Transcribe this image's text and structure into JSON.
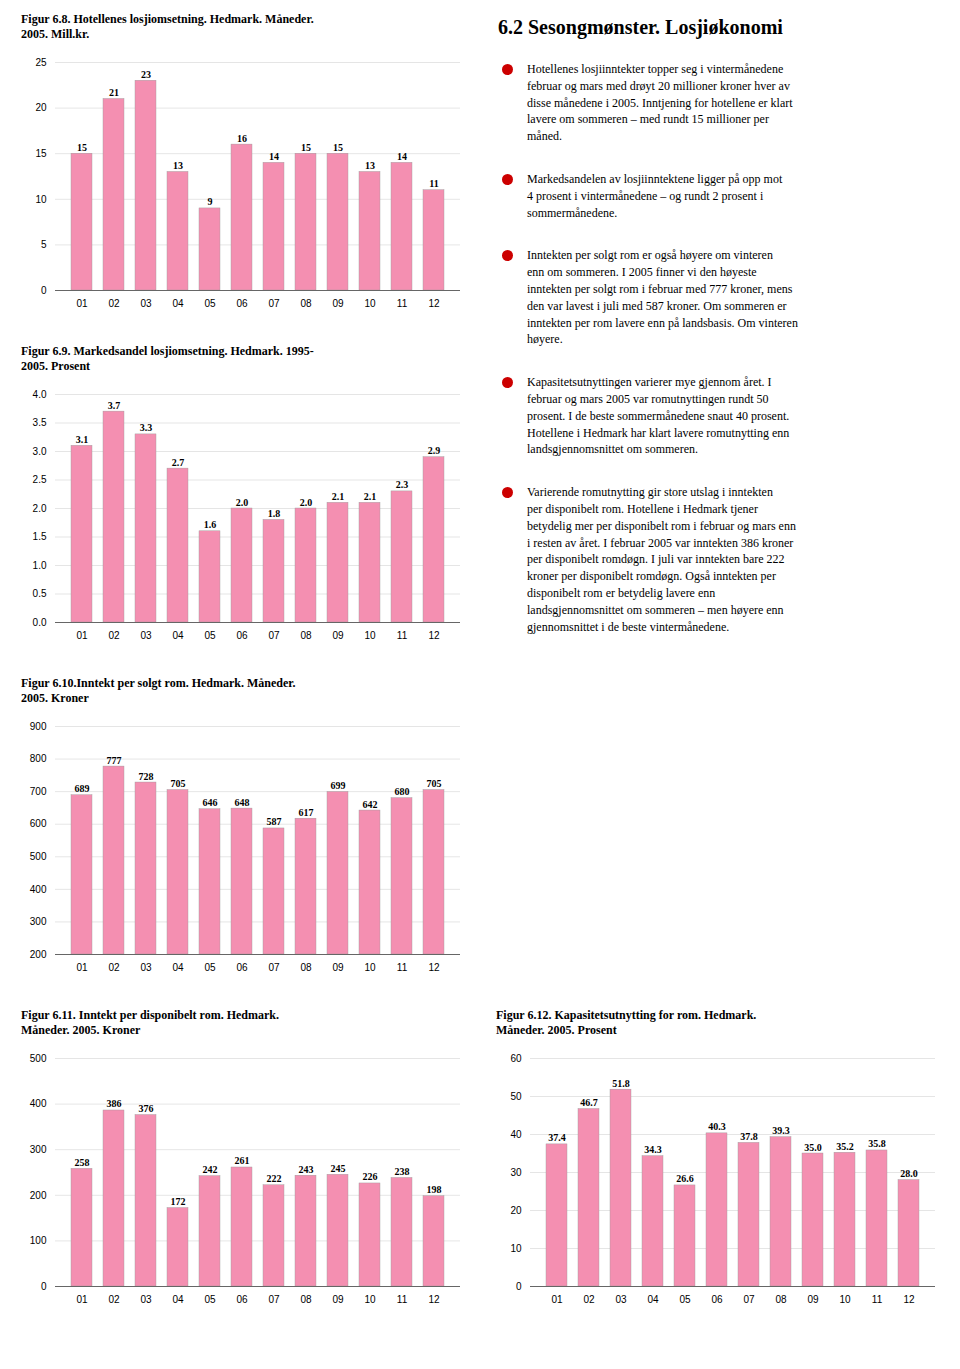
{
  "chart_data": [
    {
      "type": "bar",
      "title": "Figur 6.8. Hotellenes losjiomsetning. Hedmark. Måneder.\n2005. Mill.kr.",
      "categories": [
        "01",
        "02",
        "03",
        "04",
        "05",
        "06",
        "07",
        "08",
        "09",
        "10",
        "11",
        "12"
      ],
      "values": [
        15,
        21,
        23,
        13,
        9,
        16,
        14,
        15,
        15,
        13,
        14,
        11
      ],
      "color": "#F48FB1",
      "ylim": [
        0,
        25
      ],
      "yticks": [
        0,
        5,
        10,
        15,
        20,
        25
      ],
      "grid": true,
      "data_labels": true
    },
    {
      "type": "bar",
      "title": "Figur 6.9. Markedsandel losjiomsetning. Hedmark. 1995-\n2005. Prosent",
      "categories": [
        "01",
        "02",
        "03",
        "04",
        "05",
        "06",
        "07",
        "08",
        "09",
        "10",
        "11",
        "12"
      ],
      "values": [
        3.1,
        3.7,
        3.3,
        2.7,
        1.6,
        2.0,
        1.8,
        2.0,
        2.1,
        2.1,
        2.3,
        2.9
      ],
      "value_labels": [
        "3.1",
        "3.7",
        "3.3",
        "2.7",
        "1.6",
        "2.0",
        "1.8",
        "2.0",
        "2.1",
        "2.1",
        "2.3",
        "2.9"
      ],
      "color": "#F48FB1",
      "ylim": [
        0,
        4
      ],
      "yticks": [
        {
          "value": 0,
          "label": "0.0"
        },
        0.5,
        {
          "value": 1,
          "label": "1.0"
        },
        1.5,
        {
          "value": 2,
          "label": "2.0"
        },
        2.5,
        {
          "value": 3,
          "label": "3.0"
        },
        3.5,
        {
          "value": 4,
          "label": "4.0"
        }
      ],
      "grid": true,
      "data_labels": true
    },
    {
      "type": "bar",
      "title": "Figur 6.10.Inntekt per solgt rom. Hedmark. Måneder.\n2005. Kroner",
      "categories": [
        "01",
        "02",
        "03",
        "04",
        "05",
        "06",
        "07",
        "08",
        "09",
        "10",
        "11",
        "12"
      ],
      "values": [
        689,
        777,
        728,
        705,
        646,
        648,
        587,
        617,
        699,
        642,
        680,
        705
      ],
      "color": "#F48FB1",
      "ylim": [
        200,
        900
      ],
      "yticks": [
        200,
        300,
        400,
        500,
        600,
        700,
        800,
        900
      ],
      "grid": true,
      "data_labels": true
    },
    {
      "type": "bar",
      "title": "Figur 6.11. Inntekt per disponibelt rom. Hedmark.\nMåneder. 2005. Kroner",
      "categories": [
        "01",
        "02",
        "03",
        "04",
        "05",
        "06",
        "07",
        "08",
        "09",
        "10",
        "11",
        "12"
      ],
      "values": [
        258,
        386,
        376,
        172,
        242,
        261,
        222,
        243,
        245,
        226,
        238,
        198
      ],
      "color": "#F48FB1",
      "ylim": [
        0,
        500
      ],
      "yticks": [
        0,
        100,
        200,
        300,
        400,
        500
      ],
      "grid": true,
      "data_labels": true
    },
    {
      "type": "bar",
      "title": "Figur 6.12. Kapasitetsutnytting for rom. Hedmark.\nMåneder. 2005. Prosent",
      "categories": [
        "01",
        "02",
        "03",
        "04",
        "05",
        "06",
        "07",
        "08",
        "09",
        "10",
        "11",
        "12"
      ],
      "values": [
        37.4,
        46.7,
        51.8,
        34.3,
        26.6,
        40.3,
        37.8,
        39.3,
        35.0,
        35.2,
        35.8,
        28.0
      ],
      "value_labels": [
        "37.4",
        "46.7",
        "51.8",
        "34.3",
        "26.6",
        "40.3",
        "37.8",
        "39.3",
        "35.0",
        "35.2",
        "35.8",
        "28.0"
      ],
      "color": "#F48FB1",
      "ylim": [
        0,
        60
      ],
      "yticks": [
        0,
        10,
        20,
        30,
        40,
        50,
        60
      ],
      "grid": true,
      "data_labels": true
    }
  ],
  "text_block": {
    "title": "6.2 Sesongmønster. Losjiøkonomi",
    "color": "#CC0000",
    "paragraphs": [
      "Hotellenes losjiinntekter topper seg i vintermånedene\nfebruar og mars med drøyt 20 millioner kroner hver av\ndisse månedene i 2005. Inntjening for hotellene er klart\nlavere om sommeren – med rundt 15 millioner per\nmåned.",
      "Markedsandelen av losjiinntektene ligger på opp mot\n4 prosent i vintermånedene – og rundt 2 prosent i\nsommermånedene.",
      "Inntekten per solgt rom er også høyere om vinteren\nenn om sommeren. I 2005 finner vi den høyeste\ninntekten per solgt rom i februar med 777 kroner, mens\nden var lavest i juli med 587 kroner. Om sommeren er\ninntekten per rom lavere enn på landsbasis. Om vinteren\nhøyere.",
      "Kapasitetsutnyttingen varierer mye gjennom året. I\nfebruar og mars 2005 var romutnyttingen rundt 50\nprosent. I de beste sommermånedene snaut 40 prosent.\nHotellene i Hedmark har klart lavere romutnytting enn\nlandsgjennomsnittet om sommeren.",
      "Varierende romutnytting gir store utslag i inntekten\nper disponibelt rom. Hotellene i Hedmark tjener\nbetydelig mer per disponibelt rom i februar og mars enn\ni resten av året. I februar 2005 var inntekten 386 kroner\nper disponibelt romdøgn. I juli var inntekten bare 222\nkroner per disponibelt romdøgn. Også inntekten per\ndisponibelt rom er betydelig lavere enn\nlandsgjennomsnittet om sommeren – men høyere enn\ngjennomsnittet i de beste vintermånedene."
    ]
  }
}
